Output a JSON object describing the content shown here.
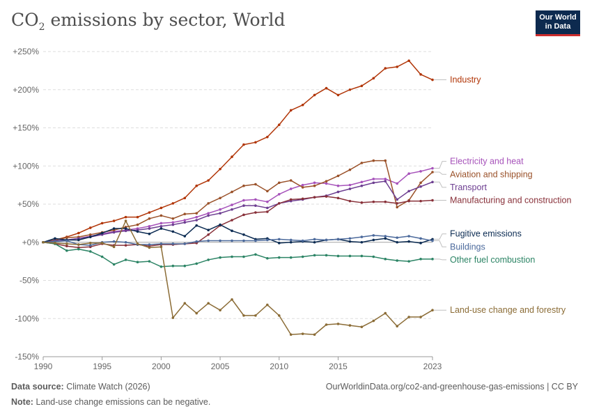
{
  "header": {
    "title_main": "CO",
    "title_sub": "2",
    "title_rest": " emissions by sector, World",
    "logo_line1": "Our World",
    "logo_line2": "in Data"
  },
  "footer": {
    "source_label": "Data source:",
    "source_value": "Climate Watch (2026)",
    "url": "OurWorldinData.org/co2-and-greenhouse-gas-emissions | CC BY",
    "note_label": "Note:",
    "note_value": "Land-use change emissions can be negative."
  },
  "chart_data": {
    "type": "line",
    "title": "CO₂ emissions by sector, World",
    "xlabel": "",
    "ylabel": "",
    "xlim": [
      1990,
      2023
    ],
    "ylim": [
      -150,
      250
    ],
    "grid": true,
    "x_ticks": [
      1990,
      1995,
      2000,
      2005,
      2010,
      2015,
      2023
    ],
    "x_tick_labels": [
      "1990",
      "1995",
      "2000",
      "2005",
      "2010",
      "2015",
      "2023"
    ],
    "y_ticks": [
      250,
      200,
      150,
      100,
      50,
      0,
      -50,
      -100,
      -150
    ],
    "y_tick_labels": [
      "+250%",
      "+200%",
      "+150%",
      "+100%",
      "+50%",
      "+0%",
      "-50%",
      "-100%",
      "-150%"
    ],
    "legend_placement": "right, inline at line ends",
    "x": [
      1990,
      1991,
      1992,
      1993,
      1994,
      1995,
      1996,
      1997,
      1998,
      1999,
      2000,
      2001,
      2002,
      2003,
      2004,
      2005,
      2006,
      2007,
      2008,
      2009,
      2010,
      2011,
      2012,
      2013,
      2014,
      2015,
      2016,
      2017,
      2018,
      2019,
      2020,
      2021,
      2022,
      2023
    ],
    "series": [
      {
        "name": "Industry",
        "color": "#b13507",
        "label_y": 213,
        "values": [
          0,
          3,
          7,
          12,
          19,
          25,
          28,
          33,
          33,
          39,
          45,
          51,
          58,
          74,
          81,
          96,
          112,
          128,
          131,
          138,
          154,
          173,
          180,
          193,
          202,
          193,
          200,
          205,
          215,
          228,
          230,
          238,
          220,
          213
        ]
      },
      {
        "name": "Electricity and heat",
        "color": "#a652ba",
        "label_y": 106,
        "values": [
          0,
          2,
          3,
          5,
          8,
          11,
          14,
          16,
          18,
          21,
          25,
          26,
          29,
          33,
          38,
          43,
          49,
          55,
          56,
          53,
          63,
          70,
          75,
          78,
          77,
          74,
          75,
          79,
          83,
          83,
          77,
          90,
          93,
          97
        ]
      },
      {
        "name": "Aviation and shipping",
        "color": "#9a5129",
        "label_y": 89,
        "values": [
          0,
          3,
          6,
          7,
          10,
          13,
          16,
          20,
          23,
          31,
          35,
          31,
          37,
          38,
          51,
          58,
          66,
          74,
          76,
          67,
          78,
          81,
          72,
          74,
          80,
          87,
          95,
          104,
          107,
          107,
          46,
          55,
          78,
          92
        ]
      },
      {
        "name": "Transport",
        "color": "#6d3e91",
        "label_y": 72,
        "values": [
          0,
          2,
          3,
          5,
          7,
          10,
          13,
          15,
          16,
          18,
          21,
          23,
          26,
          29,
          35,
          38,
          43,
          48,
          48,
          45,
          51,
          54,
          56,
          59,
          61,
          66,
          70,
          74,
          78,
          80,
          56,
          67,
          73,
          79
        ]
      },
      {
        "name": "Manufacturing and construction",
        "color": "#883039",
        "label_y": 55,
        "values": [
          0,
          -2,
          -5,
          -7,
          -6,
          -2,
          -4,
          -4,
          -3,
          -5,
          -3,
          -3,
          -2,
          -1,
          10,
          22,
          29,
          36,
          39,
          40,
          51,
          56,
          57,
          59,
          60,
          58,
          54,
          52,
          53,
          53,
          51,
          54,
          54,
          55
        ]
      },
      {
        "name": "Fugitive emissions",
        "color": "#0b2b52",
        "label_y": 11,
        "values": [
          0,
          5,
          3,
          3,
          7,
          12,
          18,
          18,
          14,
          11,
          18,
          14,
          8,
          22,
          16,
          23,
          15,
          10,
          4,
          5,
          -1,
          0,
          1,
          0,
          3,
          4,
          1,
          0,
          3,
          5,
          0,
          1,
          -1,
          4
        ]
      },
      {
        "name": "Buildings",
        "color": "#4c6a9c",
        "label_y": -6,
        "values": [
          0,
          1,
          2,
          -3,
          -4,
          0,
          1,
          0,
          -3,
          -3,
          -2,
          -2,
          -2,
          1,
          2,
          2,
          2,
          2,
          2,
          3,
          4,
          3,
          2,
          4,
          3,
          4,
          5,
          7,
          9,
          8,
          6,
          8,
          5,
          2
        ]
      },
      {
        "name": "Other fuel combustion",
        "color": "#2c8465",
        "label_y": -23,
        "values": [
          0,
          -2,
          -11,
          -9,
          -12,
          -19,
          -29,
          -23,
          -26,
          -25,
          -32,
          -31,
          -31,
          -28,
          -23,
          -20,
          -19,
          -19,
          -16,
          -21,
          -20,
          -20,
          -19,
          -17,
          -17,
          -18,
          -18,
          -18,
          -19,
          -22,
          -24,
          -25,
          -22,
          -22
        ]
      },
      {
        "name": "Land-use change and forestry",
        "color": "#8b6c36",
        "label_y": -89,
        "values": [
          0,
          -1,
          -2,
          -3,
          -1,
          -1,
          -6,
          28,
          -2,
          -7,
          -6,
          -99,
          -80,
          -93,
          -80,
          -89,
          -75,
          -96,
          -96,
          -82,
          -96,
          -121,
          -120,
          -121,
          -108,
          -107,
          -109,
          -111,
          -103,
          -93,
          -110,
          -98,
          -98,
          -89
        ]
      }
    ]
  }
}
